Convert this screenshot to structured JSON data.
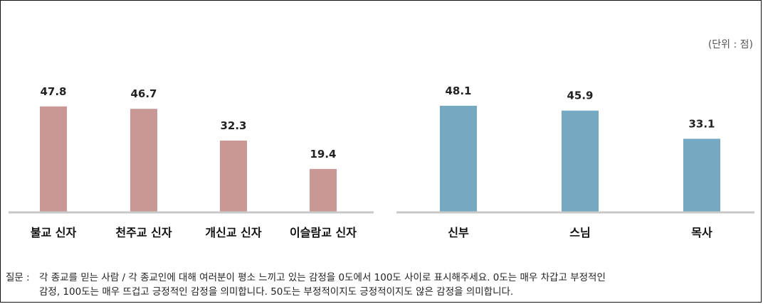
{
  "unit_label": "(단위 : 점)",
  "note": {
    "prefix": "질문 :",
    "line1": "각 종교를 믿는 사람 / 각 종교인에 대해 여러분이 평소 느끼고 있는 감정을 0도에서 100도 사이로 표시해주세요. 0도는 매우 차갑고 부정적인",
    "line2": "감정, 100도는 매우 뜨겁고 긍정적인 감정을 의미합니다. 50도는 부정적이지도 긍정적이지도 않은 감정을 의미합니다."
  },
  "colors": {
    "left": "#c99896",
    "right": "#74a9c1",
    "axis": "#c8c8c8"
  },
  "chart_data": [
    {
      "type": "bar",
      "categories": [
        "불교 신자",
        "천주교 신자",
        "개신교 신자",
        "이슬람교 신자"
      ],
      "values": [
        47.8,
        46.7,
        32.3,
        19.4
      ],
      "ylim": [
        0,
        60
      ]
    },
    {
      "type": "bar",
      "categories": [
        "신부",
        "스님",
        "목사"
      ],
      "values": [
        48.1,
        45.9,
        33.1
      ],
      "ylim": [
        0,
        60
      ]
    }
  ]
}
